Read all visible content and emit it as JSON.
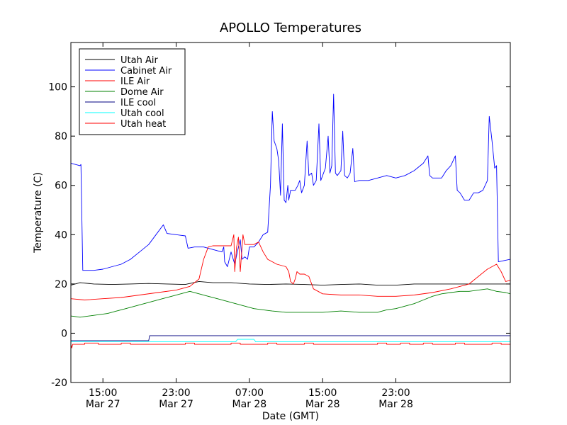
{
  "chart_data": {
    "type": "line",
    "title": "APOLLO Temperatures",
    "xlabel": "Date (GMT)",
    "ylabel": "Temperature (C)",
    "xlim": [
      11.5,
      59.5
    ],
    "ylim": [
      -20,
      118
    ],
    "grid": false,
    "legend_position": "top-left",
    "x_ticks": [
      {
        "x": 15,
        "line1": "15:00",
        "line2": "Mar 27"
      },
      {
        "x": 23,
        "line1": "23:00",
        "line2": "Mar 27"
      },
      {
        "x": 31,
        "line1": "07:00",
        "line2": "Mar 28"
      },
      {
        "x": 39,
        "line1": "15:00",
        "line2": "Mar 28"
      },
      {
        "x": 47,
        "line1": "23:00",
        "line2": "Mar 28"
      }
    ],
    "y_ticks": [
      {
        "v": -20,
        "label": "-20"
      },
      {
        "v": 0,
        "label": "0"
      },
      {
        "v": 20,
        "label": "20"
      },
      {
        "v": 40,
        "label": "40"
      },
      {
        "v": 60,
        "label": "60"
      },
      {
        "v": 80,
        "label": "80"
      },
      {
        "v": 100,
        "label": "100"
      }
    ],
    "series": [
      {
        "name": "Utah Air",
        "color": "#000000",
        "points": [
          [
            11.5,
            19.5
          ],
          [
            12.5,
            20.5
          ],
          [
            14,
            20
          ],
          [
            16,
            19.8
          ],
          [
            18,
            20
          ],
          [
            20,
            20.2
          ],
          [
            22,
            20
          ],
          [
            24,
            19.8
          ],
          [
            25.5,
            21
          ],
          [
            27,
            20.5
          ],
          [
            29,
            20.5
          ],
          [
            31,
            20
          ],
          [
            33,
            19.8
          ],
          [
            35,
            20
          ],
          [
            37,
            19.8
          ],
          [
            39,
            19.5
          ],
          [
            41,
            19.8
          ],
          [
            43,
            20
          ],
          [
            45,
            19.5
          ],
          [
            47,
            19.5
          ],
          [
            49,
            20
          ],
          [
            59.5,
            20
          ]
        ]
      },
      {
        "name": "Cabinet Air",
        "color": "#0000ff",
        "points": [
          [
            11.5,
            69
          ],
          [
            12.5,
            68
          ],
          [
            12.6,
            68.5
          ],
          [
            12.8,
            25.5
          ],
          [
            14,
            25.5
          ],
          [
            15,
            26
          ],
          [
            16,
            27
          ],
          [
            17,
            28
          ],
          [
            18,
            30
          ],
          [
            19,
            33
          ],
          [
            20,
            36
          ],
          [
            21,
            41
          ],
          [
            21.6,
            44
          ],
          [
            22,
            40.5
          ],
          [
            23,
            40
          ],
          [
            24,
            39.5
          ],
          [
            24.3,
            34.5
          ],
          [
            25,
            35
          ],
          [
            26,
            35
          ],
          [
            27,
            34
          ],
          [
            28,
            33
          ],
          [
            28.2,
            35
          ],
          [
            28.3,
            29
          ],
          [
            28.6,
            27
          ],
          [
            29,
            33
          ],
          [
            29.4,
            28
          ],
          [
            29.8,
            35
          ],
          [
            30,
            38
          ],
          [
            30.2,
            30
          ],
          [
            30.5,
            31
          ],
          [
            30.8,
            30
          ],
          [
            31,
            35
          ],
          [
            31.5,
            35
          ],
          [
            32,
            37
          ],
          [
            32.5,
            40
          ],
          [
            33,
            41
          ],
          [
            33.3,
            60
          ],
          [
            33.5,
            90
          ],
          [
            33.7,
            78
          ],
          [
            34,
            75
          ],
          [
            34.2,
            70
          ],
          [
            34.4,
            56
          ],
          [
            34.6,
            85
          ],
          [
            34.8,
            54
          ],
          [
            35,
            53
          ],
          [
            35.2,
            60
          ],
          [
            35.3,
            54
          ],
          [
            35.5,
            58
          ],
          [
            36,
            58
          ],
          [
            36.3,
            60
          ],
          [
            36.5,
            62
          ],
          [
            36.7,
            57
          ],
          [
            37,
            60
          ],
          [
            37.3,
            78
          ],
          [
            37.5,
            64
          ],
          [
            37.8,
            65
          ],
          [
            38,
            60
          ],
          [
            38.3,
            62
          ],
          [
            38.6,
            85
          ],
          [
            38.8,
            62
          ],
          [
            39,
            64
          ],
          [
            39.3,
            67
          ],
          [
            39.6,
            80
          ],
          [
            39.8,
            65
          ],
          [
            40,
            68
          ],
          [
            40.2,
            97
          ],
          [
            40.4,
            65
          ],
          [
            40.6,
            64
          ],
          [
            41,
            66
          ],
          [
            41.2,
            82
          ],
          [
            41.4,
            64
          ],
          [
            41.7,
            63
          ],
          [
            42,
            65
          ],
          [
            42.3,
            75
          ],
          [
            42.5,
            61.5
          ],
          [
            43,
            62
          ],
          [
            44,
            62
          ],
          [
            45,
            63
          ],
          [
            46,
            64
          ],
          [
            47,
            63
          ],
          [
            48,
            64
          ],
          [
            49,
            66
          ],
          [
            50,
            69
          ],
          [
            50.5,
            72
          ],
          [
            50.7,
            64
          ],
          [
            51,
            63
          ],
          [
            52,
            63
          ],
          [
            52.5,
            66
          ],
          [
            53,
            68
          ],
          [
            53.5,
            72
          ],
          [
            53.7,
            58
          ],
          [
            54,
            57
          ],
          [
            54.5,
            54
          ],
          [
            55,
            54
          ],
          [
            55.5,
            57
          ],
          [
            56,
            57
          ],
          [
            56.5,
            58
          ],
          [
            57,
            62
          ],
          [
            57.2,
            88
          ],
          [
            57.5,
            78
          ],
          [
            57.8,
            67
          ],
          [
            58,
            68
          ],
          [
            58.2,
            29
          ],
          [
            59.5,
            30
          ]
        ]
      },
      {
        "name": "ILE Air",
        "color": "#ff0000",
        "points": [
          [
            11.5,
            14
          ],
          [
            13,
            13.5
          ],
          [
            15,
            14
          ],
          [
            17,
            14.5
          ],
          [
            19,
            15.5
          ],
          [
            21,
            16.5
          ],
          [
            23,
            17.5
          ],
          [
            24.5,
            19
          ],
          [
            25.5,
            22
          ],
          [
            26,
            30
          ],
          [
            26.5,
            35
          ],
          [
            27,
            35.5
          ],
          [
            28,
            35.5
          ],
          [
            29,
            35.5
          ],
          [
            29.3,
            40
          ],
          [
            29.4,
            25
          ],
          [
            29.6,
            35
          ],
          [
            29.8,
            39
          ],
          [
            30,
            25
          ],
          [
            30.3,
            40
          ],
          [
            30.5,
            36
          ],
          [
            31,
            36
          ],
          [
            31.5,
            36
          ],
          [
            32,
            37
          ],
          [
            32.5,
            33
          ],
          [
            33,
            30
          ],
          [
            34,
            28
          ],
          [
            35,
            27
          ],
          [
            35.3,
            25
          ],
          [
            35.5,
            21
          ],
          [
            35.8,
            20
          ],
          [
            36,
            22
          ],
          [
            36.2,
            25
          ],
          [
            36.5,
            24
          ],
          [
            37,
            24
          ],
          [
            37.5,
            23
          ],
          [
            38,
            18
          ],
          [
            38.5,
            17
          ],
          [
            39,
            16
          ],
          [
            41,
            15.5
          ],
          [
            43,
            15.5
          ],
          [
            45,
            15
          ],
          [
            47,
            15
          ],
          [
            49,
            15.5
          ],
          [
            51,
            16.5
          ],
          [
            53,
            18
          ],
          [
            55,
            20
          ],
          [
            56,
            23
          ],
          [
            57,
            26
          ],
          [
            58,
            28
          ],
          [
            58.5,
            25
          ],
          [
            59,
            21
          ],
          [
            59.5,
            21.5
          ]
        ]
      },
      {
        "name": "Dome Air",
        "color": "#008000",
        "points": [
          [
            11.5,
            7
          ],
          [
            12.5,
            6.5
          ],
          [
            13.5,
            7
          ],
          [
            14.5,
            7.5
          ],
          [
            15.5,
            8
          ],
          [
            16.5,
            9
          ],
          [
            17.5,
            10
          ],
          [
            18.5,
            11
          ],
          [
            19.5,
            12
          ],
          [
            20.5,
            13
          ],
          [
            21.5,
            14
          ],
          [
            22.5,
            15
          ],
          [
            23.5,
            16
          ],
          [
            24.5,
            17
          ],
          [
            25.5,
            16
          ],
          [
            26.5,
            15
          ],
          [
            27.5,
            14
          ],
          [
            28.5,
            13
          ],
          [
            29.5,
            12
          ],
          [
            30.5,
            11
          ],
          [
            31.5,
            10
          ],
          [
            32.5,
            9.5
          ],
          [
            33.5,
            9
          ],
          [
            35,
            8.5
          ],
          [
            37,
            8.5
          ],
          [
            39,
            8.5
          ],
          [
            41,
            9
          ],
          [
            43,
            8.5
          ],
          [
            45,
            8.5
          ],
          [
            46,
            9.5
          ],
          [
            47,
            10
          ],
          [
            48,
            11
          ],
          [
            49,
            12
          ],
          [
            50,
            13.5
          ],
          [
            51,
            15
          ],
          [
            52,
            16
          ],
          [
            53,
            16.5
          ],
          [
            54,
            17
          ],
          [
            55,
            17
          ],
          [
            56,
            17.5
          ],
          [
            57,
            18
          ],
          [
            58,
            17
          ],
          [
            59,
            16.5
          ],
          [
            59.5,
            16
          ]
        ]
      },
      {
        "name": "ILE cool",
        "color": "#000080",
        "points": [
          [
            11.5,
            -3
          ],
          [
            20,
            -3
          ],
          [
            20.1,
            -1
          ],
          [
            59.5,
            -1
          ]
        ]
      },
      {
        "name": "Utah cool",
        "color": "#00ffff",
        "points": [
          [
            11.5,
            -3.5
          ],
          [
            29.5,
            -3.5
          ],
          [
            29.7,
            -2.5
          ],
          [
            31.5,
            -2.5
          ],
          [
            31.7,
            -3.5
          ],
          [
            59.5,
            -3.5
          ]
        ]
      },
      {
        "name": "Utah heat",
        "color": "#ff0000",
        "points": [
          [
            11.5,
            -4.5
          ],
          [
            11.6,
            -6
          ],
          [
            11.7,
            -4.5
          ],
          [
            13,
            -4.5
          ],
          [
            13,
            -4
          ],
          [
            14.5,
            -4
          ],
          [
            14.5,
            -4.5
          ],
          [
            17,
            -4.5
          ],
          [
            17,
            -4
          ],
          [
            18,
            -4
          ],
          [
            18,
            -4.5
          ],
          [
            24,
            -4.5
          ],
          [
            24,
            -4
          ],
          [
            25,
            -4
          ],
          [
            25,
            -4.5
          ],
          [
            29,
            -4.5
          ],
          [
            29,
            -4
          ],
          [
            30,
            -4
          ],
          [
            30,
            -4.5
          ],
          [
            33,
            -4.5
          ],
          [
            33,
            -4
          ],
          [
            34,
            -4
          ],
          [
            34,
            -4.5
          ],
          [
            37,
            -4.5
          ],
          [
            37,
            -4
          ],
          [
            38,
            -4
          ],
          [
            38,
            -4.5
          ],
          [
            45,
            -4.5
          ],
          [
            45,
            -4
          ],
          [
            46,
            -4
          ],
          [
            46,
            -4.5
          ],
          [
            47.5,
            -4.5
          ],
          [
            47.5,
            -4
          ],
          [
            48.5,
            -4
          ],
          [
            48.5,
            -4.5
          ],
          [
            50,
            -4.5
          ],
          [
            50,
            -4
          ],
          [
            51,
            -4
          ],
          [
            51,
            -4.5
          ],
          [
            53.5,
            -4.5
          ],
          [
            53.5,
            -4
          ],
          [
            54.5,
            -4
          ],
          [
            54.5,
            -4.5
          ],
          [
            57.5,
            -4.5
          ],
          [
            57.5,
            -4
          ],
          [
            58.5,
            -4
          ],
          [
            58.5,
            -4.5
          ],
          [
            59.5,
            -4.5
          ]
        ]
      }
    ]
  }
}
